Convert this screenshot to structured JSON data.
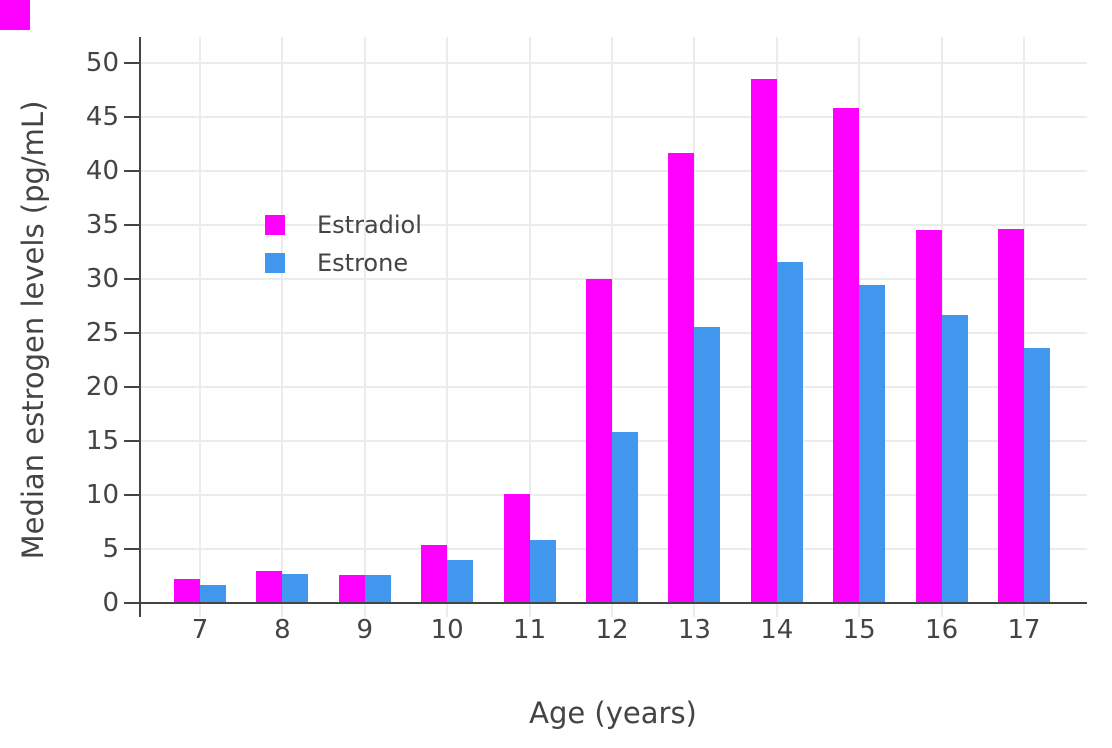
{
  "chart_data": {
    "type": "bar",
    "bar_mode": "grouped",
    "title": "",
    "xlabel": "Age (years)",
    "ylabel": "Median estrogen levels (pg/mL)",
    "categories": [
      "7",
      "8",
      "9",
      "10",
      "11",
      "12",
      "13",
      "14",
      "15",
      "16",
      "17"
    ],
    "series": [
      {
        "name": "Estradiol",
        "color": "#FF00FF",
        "values": [
          2.2,
          3.0,
          2.6,
          5.4,
          10.1,
          30.0,
          41.6,
          48.5,
          45.8,
          34.5,
          34.6
        ]
      },
      {
        "name": "Estrone",
        "color": "#4196EE",
        "values": [
          1.7,
          2.7,
          2.6,
          4.0,
          5.8,
          15.8,
          25.5,
          31.5,
          29.4,
          26.6,
          23.6
        ]
      }
    ],
    "yticks": [
      0,
      5,
      10,
      15,
      20,
      25,
      30,
      35,
      40,
      45,
      50
    ],
    "ylim": [
      0,
      52.4
    ],
    "grid": true,
    "legend_position": "inside-top-left"
  },
  "colors": {
    "text": "#444444",
    "axis_line": "#444444",
    "gridline": "#ECECEC",
    "plot_background": "#FFFFFF",
    "cursor_marker": "#FF00FF"
  }
}
